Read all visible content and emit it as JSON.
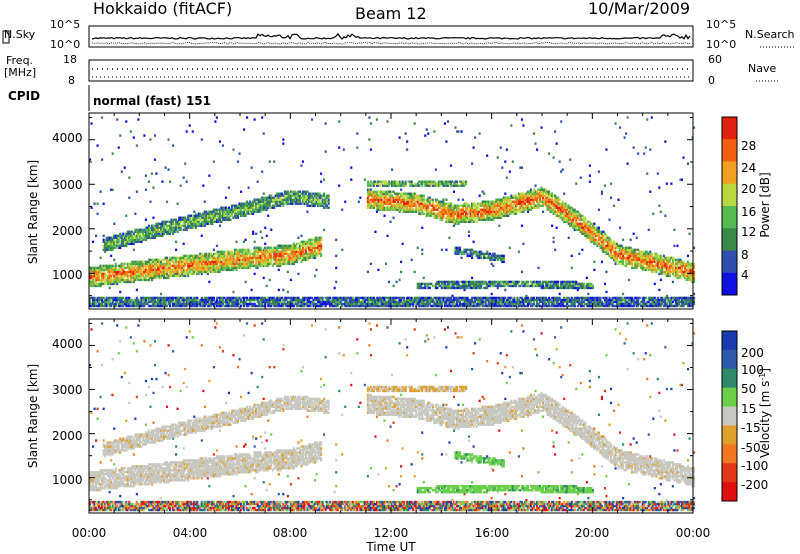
{
  "header": {
    "station": "Hokkaido (fitACF)",
    "beam": "Beam 12",
    "date": "10/Mar/2009"
  },
  "noise_panel": {
    "left_label": "N.Sky",
    "right_label": "N.Search",
    "left_ticks": [
      "10^5",
      "10^0"
    ],
    "right_ticks": [
      "10^5",
      "10^0"
    ]
  },
  "freq_panel": {
    "left_label_1": "Freq.",
    "left_label_2": "[MHz]",
    "right_label": "Nave",
    "left_ticks": [
      "18",
      "8"
    ],
    "right_ticks": [
      "60",
      "0"
    ]
  },
  "cpid": {
    "label": "CPID",
    "value": "normal (fast) 151"
  },
  "colors": {
    "power_scale": [
      "#1010e0",
      "#3050b0",
      "#3a8a4a",
      "#55bb50",
      "#b8d840",
      "#f0a020",
      "#f06010",
      "#e02010"
    ],
    "velocity_scale": [
      "#1a3ab0",
      "#2f5ba8",
      "#2e8a6a",
      "#6ad04a",
      "#c8c8c0",
      "#e0a030",
      "#f07820",
      "#e03818",
      "#e01010"
    ]
  },
  "chart_data": [
    {
      "type": "heatmap",
      "panel": "power",
      "ylabel": "Slant Range [km]",
      "yticks": [
        "1000",
        "2000",
        "3000",
        "4000"
      ],
      "ylim": [
        200,
        4600
      ],
      "xticks": [
        "00:00",
        "04:00",
        "08:00",
        "12:00",
        "16:00",
        "20:00",
        "00:00"
      ],
      "xlim": [
        0,
        24
      ],
      "colorbar_label": "Power [dB]",
      "colorbar_ticks": [
        "4",
        "8",
        "12",
        "16",
        "20",
        "24",
        "28"
      ],
      "colorbar_range": [
        0,
        30
      ],
      "grid": false
    },
    {
      "type": "heatmap",
      "panel": "velocity",
      "ylabel": "Slant Range [km]",
      "yticks": [
        "1000",
        "2000",
        "3000",
        "4000"
      ],
      "ylim": [
        200,
        4600
      ],
      "xticks": [
        "00:00",
        "04:00",
        "08:00",
        "12:00",
        "16:00",
        "20:00",
        "00:00"
      ],
      "xlabel": "Time UT",
      "xlim": [
        0,
        24
      ],
      "colorbar_label": "Velocity [m s^-1]",
      "colorbar_ticks": [
        "200",
        "100",
        "50",
        "15",
        "-15",
        "-50",
        "-100",
        "-200"
      ],
      "colorbar_range": [
        -250,
        250
      ],
      "grid": false
    }
  ]
}
